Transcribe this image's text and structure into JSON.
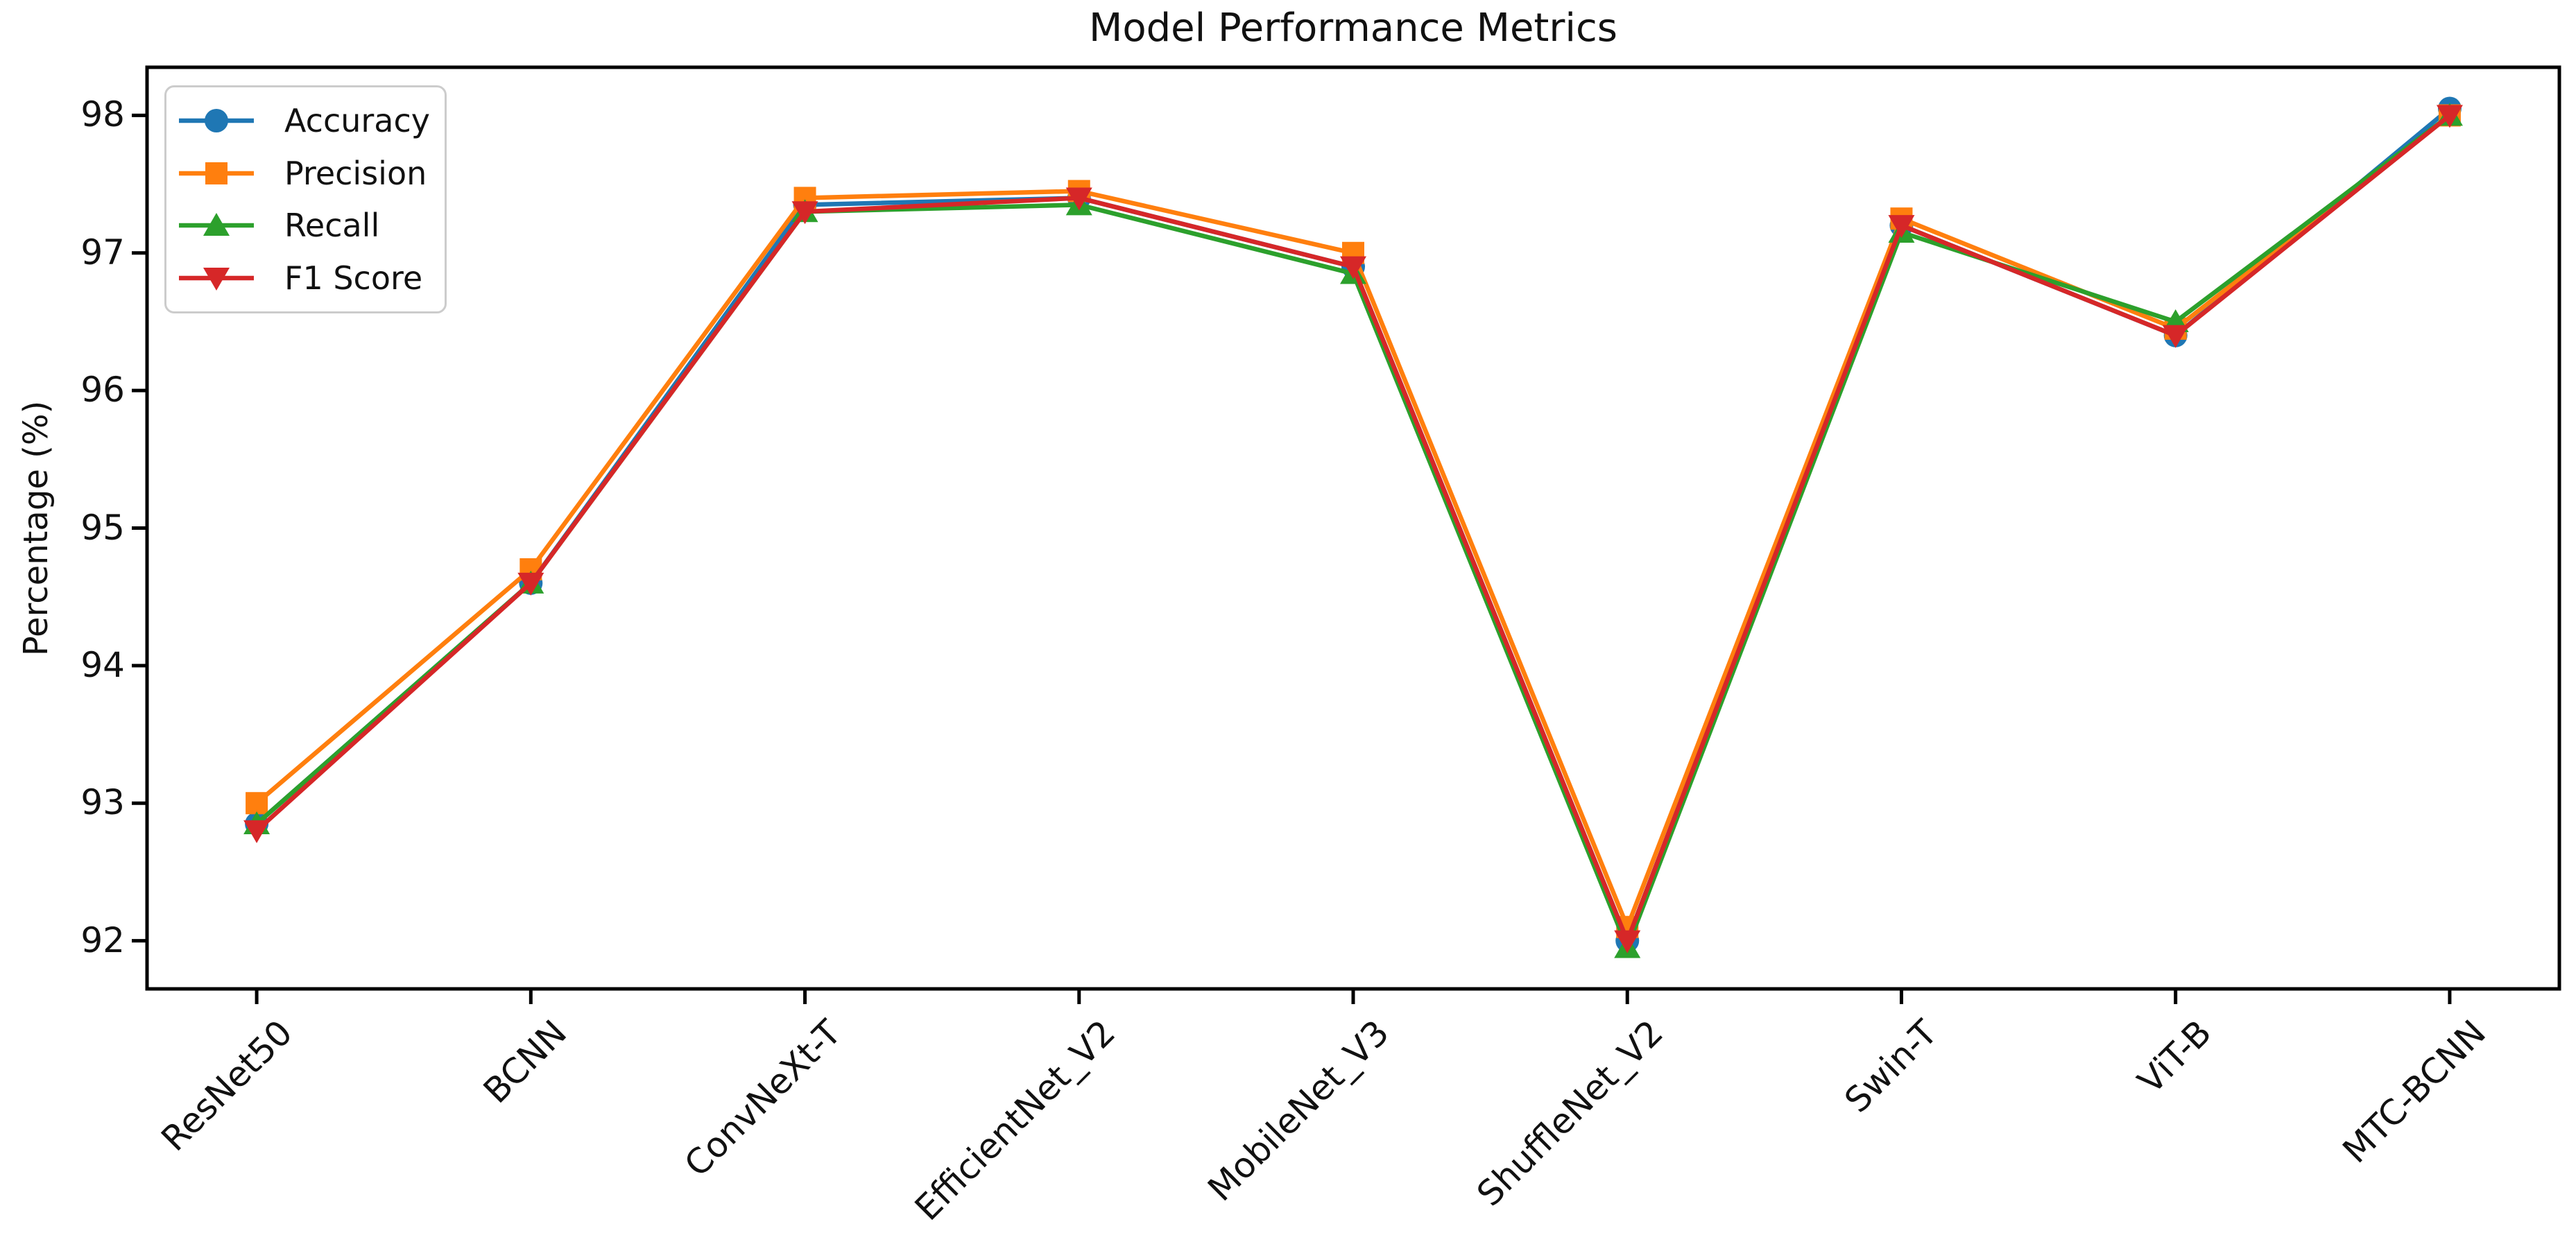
{
  "chart_data": {
    "type": "line",
    "title": "Model Performance Metrics",
    "xlabel": "",
    "ylabel": "Percentage (%)",
    "categories": [
      "ResNet50",
      "BCNN",
      "ConvNeXt-T",
      "EfficientNet_V2",
      "MobileNet_V3",
      "ShuffleNet_V2",
      "Swin-T",
      "ViT-B",
      "MTC-BCNN"
    ],
    "yticks": [
      92,
      93,
      94,
      95,
      96,
      97,
      98
    ],
    "ylim": [
      91.65,
      98.35
    ],
    "grid": false,
    "legend_position": "upper-left",
    "axis_color": "#000000",
    "series": [
      {
        "name": "Accuracy",
        "color": "#1f77b4",
        "marker": "circle",
        "values": [
          92.85,
          94.6,
          97.35,
          97.4,
          96.9,
          92.0,
          97.2,
          96.4,
          98.05
        ]
      },
      {
        "name": "Precision",
        "color": "#ff7f0e",
        "marker": "square",
        "values": [
          93.0,
          94.7,
          97.4,
          97.45,
          97.0,
          92.1,
          97.25,
          96.45,
          98.0
        ]
      },
      {
        "name": "Recall",
        "color": "#2ca02c",
        "marker": "triangle-up",
        "values": [
          92.85,
          94.6,
          97.3,
          97.35,
          96.85,
          91.95,
          97.15,
          96.5,
          98.0
        ]
      },
      {
        "name": "F1 Score",
        "color": "#d62728",
        "marker": "triangle-down",
        "values": [
          92.8,
          94.6,
          97.3,
          97.4,
          96.9,
          92.0,
          97.2,
          96.4,
          98.0
        ]
      }
    ]
  }
}
